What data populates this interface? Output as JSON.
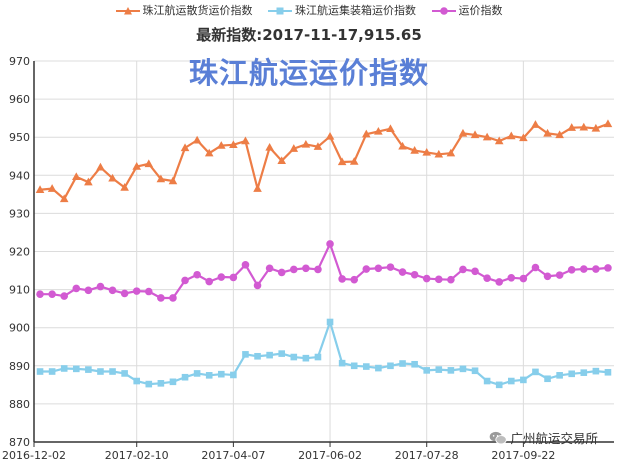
{
  "header": {
    "legend": [
      {
        "label": "珠江航运散货运价指数",
        "color": "#ed7d46",
        "icon": "triangle-marker"
      },
      {
        "label": "珠江航运集装箱运价指数",
        "color": "#87ceeb",
        "icon": "square-marker"
      },
      {
        "label": "运价指数",
        "color": "#d25ad2",
        "icon": "circle-marker"
      }
    ],
    "subtitle": "最新指数:2017-11-17,915.65",
    "big_title": "珠江航运运价指数"
  },
  "watermark": {
    "text": "广州航运交易所",
    "icon": "wechat-icon"
  },
  "chart_data": {
    "type": "line",
    "x_tick_labels": [
      "2016-12-02",
      "2017-02-10",
      "2017-04-07",
      "2017-06-02",
      "2017-07-28",
      "2017-09-22"
    ],
    "ylim": [
      870,
      970
    ],
    "y_ticks": [
      870,
      880,
      890,
      900,
      910,
      920,
      930,
      940,
      950,
      960,
      970
    ],
    "grid": true,
    "legend_position": "top",
    "series": [
      {
        "name": "珠江航运散货运价指数",
        "color": "#ed7d46",
        "marker": "triangle",
        "values": [
          936.2,
          936.5,
          933.8,
          939.6,
          938.2,
          942.1,
          939.2,
          936.8,
          942.3,
          943.0,
          939.0,
          938.5,
          947.2,
          949.2,
          945.8,
          947.8,
          948.0,
          949.0,
          936.5,
          947.3,
          943.8,
          947.0,
          948.1,
          947.5,
          950.2,
          943.5,
          943.6,
          950.8,
          951.5,
          952.2,
          947.6,
          946.5,
          946.0,
          945.5,
          945.8,
          951.0,
          950.6,
          950.0,
          949.0,
          950.3,
          949.8,
          953.3,
          951.0,
          950.6,
          952.5,
          952.6,
          952.3,
          953.5
        ]
      },
      {
        "name": "珠江航运集装箱运价指数",
        "color": "#87ceeb",
        "marker": "square",
        "values": [
          888.5,
          888.5,
          889.3,
          889.2,
          889.0,
          888.5,
          888.5,
          888.0,
          886.0,
          885.2,
          885.4,
          885.8,
          887.0,
          888.0,
          887.5,
          887.8,
          887.6,
          893.0,
          892.5,
          892.8,
          893.2,
          892.3,
          892.0,
          892.3,
          901.5,
          890.7,
          890.0,
          889.8,
          889.4,
          890.0,
          890.6,
          890.4,
          888.8,
          889.0,
          888.8,
          889.2,
          888.7,
          886.0,
          885.0,
          886.0,
          886.3,
          888.4,
          886.6,
          887.5,
          887.9,
          888.2,
          888.6,
          888.3
        ]
      },
      {
        "name": "运价指数",
        "color": "#d25ad2",
        "marker": "circle",
        "values": [
          908.8,
          908.8,
          908.3,
          910.3,
          909.8,
          910.8,
          909.8,
          909.0,
          909.6,
          909.5,
          907.8,
          907.8,
          912.4,
          913.9,
          912.1,
          913.3,
          913.2,
          916.5,
          911.1,
          915.6,
          914.5,
          915.3,
          915.6,
          915.3,
          922.0,
          912.8,
          912.6,
          915.4,
          915.6,
          915.9,
          914.6,
          913.9,
          912.9,
          912.7,
          912.6,
          915.3,
          914.8,
          913.0,
          912.0,
          913.1,
          912.9,
          915.8,
          913.5,
          913.8,
          915.2,
          915.4,
          915.4,
          915.7
        ]
      }
    ]
  }
}
